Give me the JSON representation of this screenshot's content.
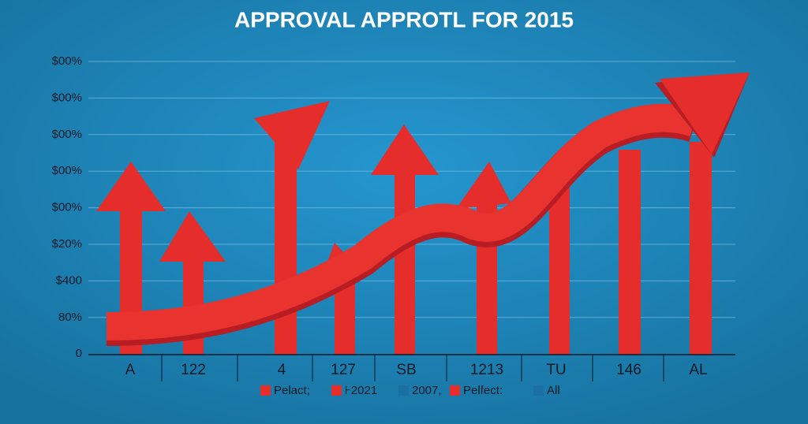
{
  "header": {
    "title": "APPROVAL APPROTL FOR 2015"
  },
  "y_axis_labels": [
    "$00%",
    "$00%",
    "$00%",
    "$00%",
    "$00%",
    "$20%",
    "$400",
    "80%",
    "0"
  ],
  "x_axis_labels": [
    "A",
    "122",
    "4",
    "127",
    "SB",
    "1213",
    "TU",
    "146",
    "AL"
  ],
  "legend": [
    {
      "label": "Pelact;",
      "color": "#e52d2b"
    },
    {
      "label": "⊦2021",
      "color": "#e52d2b"
    },
    {
      "label": "2007,",
      "color": "#1a6fa3"
    },
    {
      "label": "Pelfect:",
      "color": "#e52d2b"
    },
    {
      "label": "All",
      "color": "#1a6fa3"
    }
  ]
}
